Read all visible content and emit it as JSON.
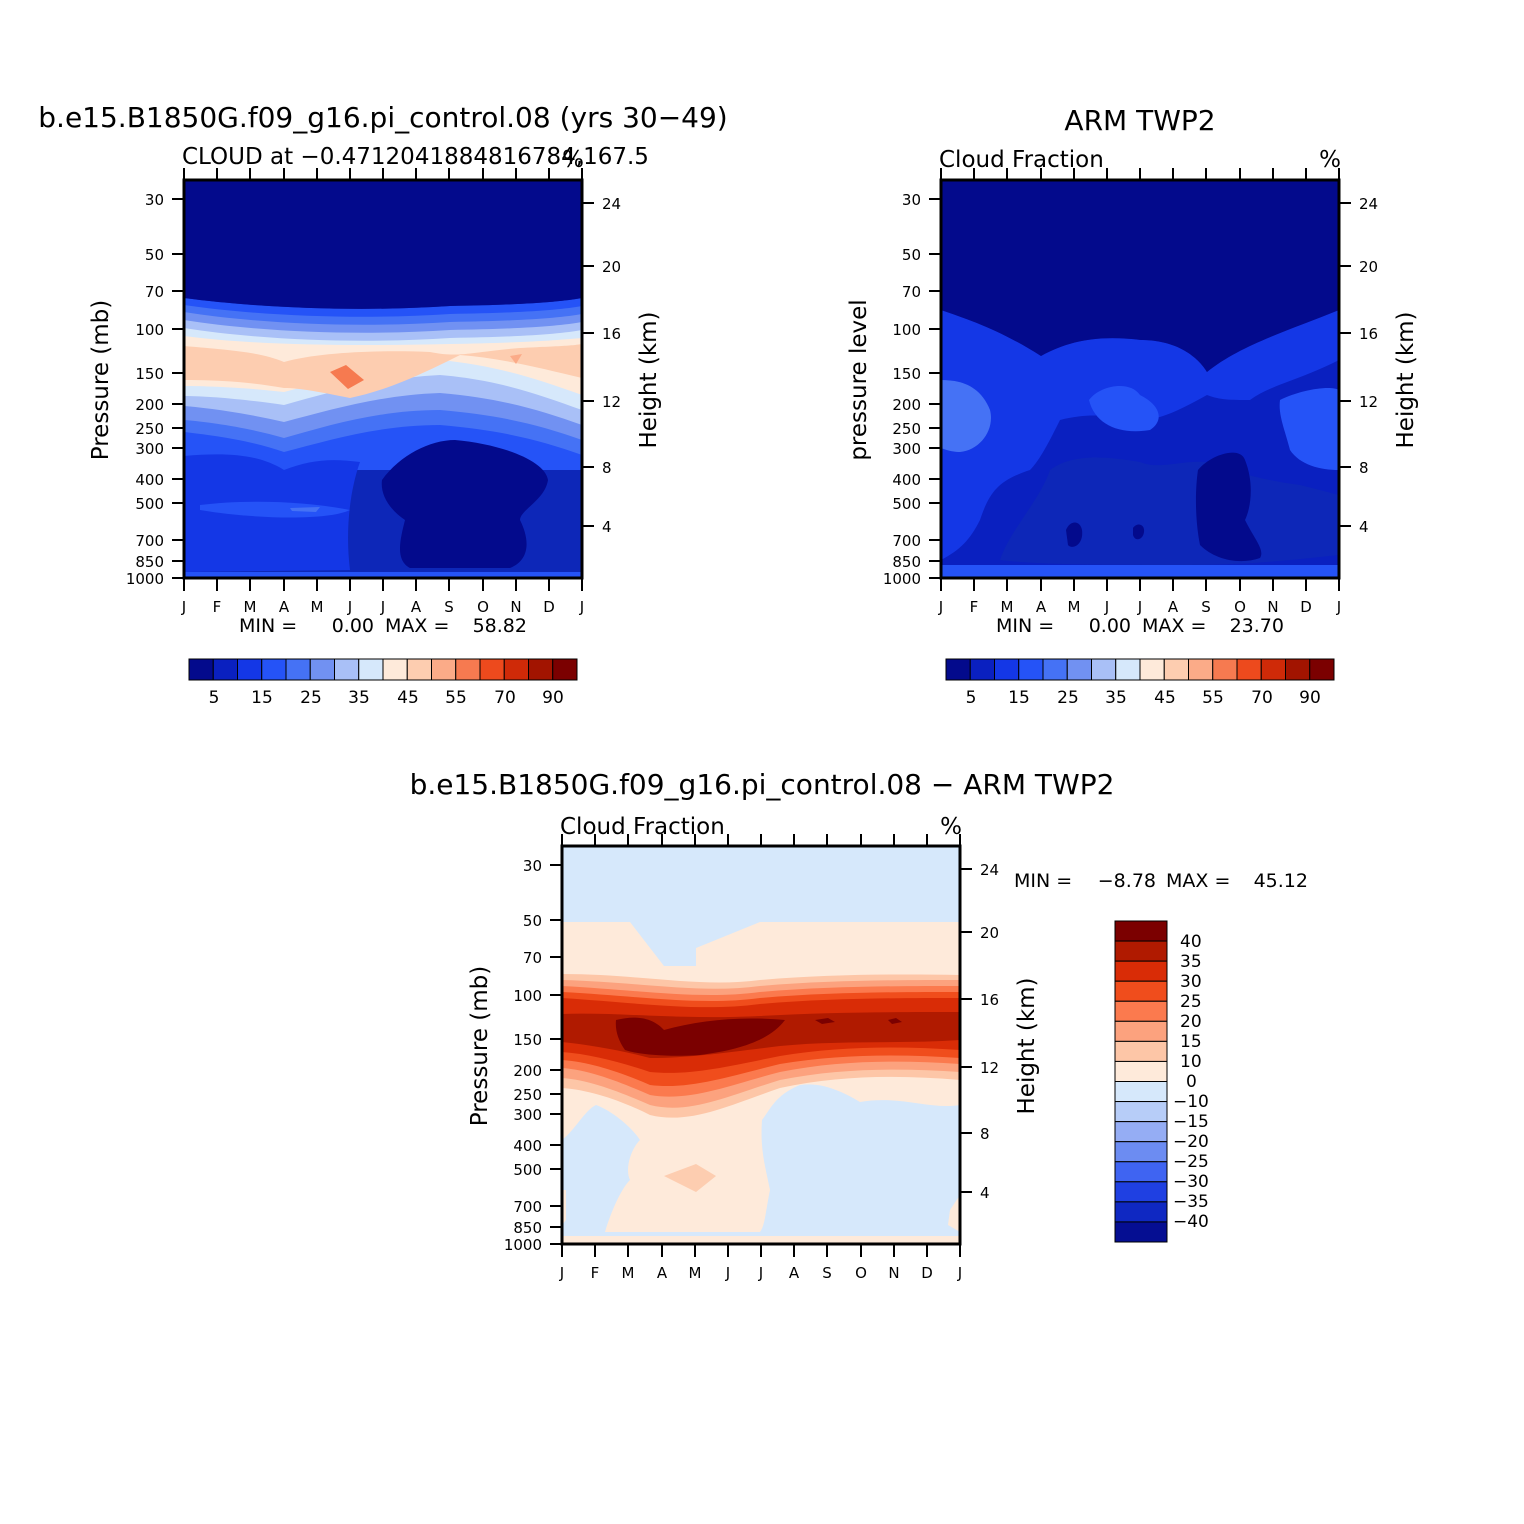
{
  "chart_data": [
    {
      "type": "contour",
      "title": "b.e15.B1850G.f09_g16.pi_control.08 (yrs 30-49)",
      "left_label": "CLOUD at -0.4712041884816784,167.5",
      "right_label": "%",
      "xlabel": "",
      "ylabel": "Pressure (mb)",
      "ylabel_right": "Height (km)",
      "x_ticks": [
        "J",
        "F",
        "M",
        "A",
        "M",
        "J",
        "J",
        "A",
        "S",
        "O",
        "N",
        "D",
        "J"
      ],
      "y_ticks": [
        30,
        50,
        70,
        100,
        150,
        200,
        250,
        300,
        400,
        500,
        700,
        850,
        1000
      ],
      "y_ticks_right": [
        24,
        20,
        16,
        12,
        8,
        4
      ],
      "ylim": [
        1000,
        25
      ],
      "min_label": "MIN =",
      "min_value": "0.00",
      "max_label": "MAX =",
      "max_value": "58.82",
      "colorbar_labels": [
        "5",
        "15",
        "25",
        "35",
        "45",
        "55",
        "70",
        "90"
      ]
    },
    {
      "type": "contour",
      "title": "ARM TWP2",
      "left_label": "Cloud Fraction",
      "right_label": "%",
      "xlabel": "",
      "ylabel": "pressure level",
      "ylabel_right": "Height (km)",
      "x_ticks": [
        "J",
        "F",
        "M",
        "A",
        "M",
        "J",
        "J",
        "A",
        "S",
        "O",
        "N",
        "D",
        "J"
      ],
      "y_ticks": [
        30,
        50,
        70,
        100,
        150,
        200,
        250,
        300,
        400,
        500,
        700,
        850,
        1000
      ],
      "y_ticks_right": [
        24,
        20,
        16,
        12,
        8,
        4
      ],
      "ylim": [
        1000,
        25
      ],
      "min_label": "MIN =",
      "min_value": "0.00",
      "max_label": "MAX =",
      "max_value": "23.70",
      "colorbar_labels": [
        "5",
        "15",
        "25",
        "35",
        "45",
        "55",
        "70",
        "90"
      ]
    },
    {
      "type": "contour",
      "title": "b.e15.B1850G.f09_g16.pi_control.08 - ARM TWP2",
      "left_label": "Cloud Fraction",
      "right_label": "%",
      "xlabel": "",
      "ylabel": "Pressure (mb)",
      "ylabel_right": "Height (km)",
      "x_ticks": [
        "J",
        "F",
        "M",
        "A",
        "M",
        "J",
        "J",
        "A",
        "S",
        "O",
        "N",
        "D",
        "J"
      ],
      "y_ticks": [
        30,
        50,
        70,
        100,
        150,
        200,
        250,
        300,
        400,
        500,
        700,
        850,
        1000
      ],
      "y_ticks_right": [
        24,
        20,
        16,
        12,
        8,
        4
      ],
      "ylim": [
        1000,
        25
      ],
      "min_label": "MIN =",
      "min_value": "-8.78",
      "max_label": "MAX =",
      "max_value": "45.12",
      "colorbar_labels": [
        "40",
        "35",
        "30",
        "25",
        "20",
        "15",
        "10",
        "0",
        "-10",
        "-15",
        "-20",
        "-25",
        "-30",
        "-35",
        "-40"
      ]
    }
  ],
  "palettes": {
    "abs": [
      "#030a8c",
      "#0a20c0",
      "#1437e6",
      "#2553f7",
      "#4572f5",
      "#7191f2",
      "#a9c0f7",
      "#d6e8fb",
      "#feeada",
      "#fdcdb0",
      "#fbab88",
      "#f67a50",
      "#ed4a1d",
      "#cf2a08",
      "#a21400",
      "#7b0000"
    ],
    "diff": [
      "#7b0000",
      "#b01a00",
      "#d92c06",
      "#f04d1c",
      "#fb7a4e",
      "#fca27e",
      "#fdc6a7",
      "#feeada",
      "#d6e8fb",
      "#b7cdf8",
      "#95adf4",
      "#6c8cf2",
      "#3f64f2",
      "#1f40e2",
      "#0f28c2",
      "#050e92"
    ]
  }
}
